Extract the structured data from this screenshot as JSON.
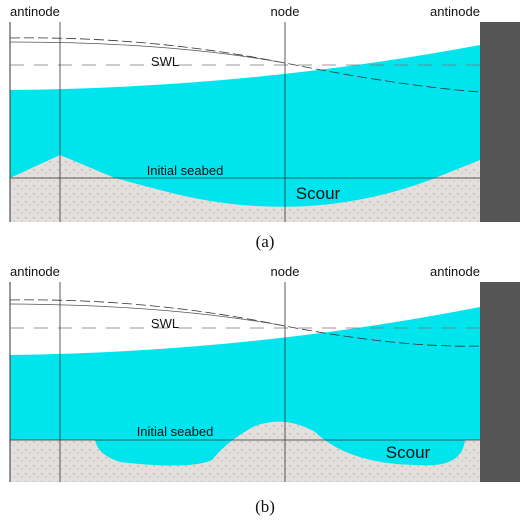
{
  "panels": [
    {
      "labels": {
        "left": "antinode",
        "center": "node",
        "right": "antinode",
        "swl": "SWL",
        "seabed": "Initial seabed",
        "scour": "Scour"
      },
      "caption": "(a)"
    },
    {
      "labels": {
        "left": "antinode",
        "center": "node",
        "right": "antinode",
        "swl": "SWL",
        "seabed": "Initial seabed",
        "scour": "Scour"
      },
      "caption": "(b)"
    }
  ]
}
